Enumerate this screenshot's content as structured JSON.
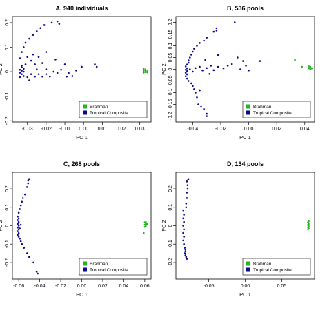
{
  "chart_data": [
    {
      "type": "scatter",
      "title": "A, 940 individuals",
      "xlabel": "PC 1",
      "ylabel": "PC 2",
      "xlim": [
        -0.038,
        0.036
      ],
      "ylim": [
        -0.205,
        0.225
      ],
      "xticks": [
        -0.03,
        -0.02,
        -0.01,
        0.0,
        0.01,
        0.02,
        0.03
      ],
      "xtick_labels": [
        "-0.03",
        "-0.02",
        "-0.01",
        "0.00",
        "0.01",
        "0.02",
        "0.03"
      ],
      "yticks": [
        -0.2,
        -0.1,
        0.0,
        0.1,
        0.2
      ],
      "ytick_labels": [
        "-0.2",
        "-0.1",
        "0",
        "0.1",
        "0.2"
      ],
      "legend": {
        "position": "bottom-right",
        "entries": [
          "Brahman",
          "Tropical Composite"
        ]
      },
      "series": [
        {
          "name": "Brahman",
          "color": "#22b422",
          "points": [
            [
              0.032,
              0.012
            ],
            [
              0.033,
              0.01
            ],
            [
              0.032,
              0.006
            ],
            [
              0.033,
              0.004
            ],
            [
              0.032,
              0.0
            ],
            [
              0.033,
              -0.002
            ],
            [
              0.034,
              0.002
            ],
            [
              0.032,
              -0.004
            ],
            [
              0.033,
              0.006
            ],
            [
              0.034,
              -0.003
            ]
          ]
        },
        {
          "name": "Tropical Composite",
          "color": "#0a0a8c",
          "points": [
            [
              -0.034,
              0.055
            ],
            [
              -0.033,
              0.08
            ],
            [
              -0.032,
              0.1
            ],
            [
              -0.031,
              0.118
            ],
            [
              -0.029,
              0.135
            ],
            [
              -0.027,
              0.15
            ],
            [
              -0.025,
              0.165
            ],
            [
              -0.023,
              0.178
            ],
            [
              -0.021,
              0.19
            ],
            [
              -0.017,
              0.2
            ],
            [
              -0.014,
              0.205
            ],
            [
              -0.013,
              0.195
            ],
            [
              -0.033,
              0.025
            ],
            [
              -0.033,
              0.018
            ],
            [
              -0.032,
              0.012
            ],
            [
              -0.034,
              0.008
            ],
            [
              -0.033,
              0.004
            ],
            [
              -0.032,
              0.0
            ],
            [
              -0.034,
              -0.004
            ],
            [
              -0.033,
              -0.01
            ],
            [
              -0.032,
              -0.018
            ],
            [
              -0.034,
              -0.022
            ],
            [
              -0.031,
              0.03
            ],
            [
              -0.03,
              0.06
            ],
            [
              -0.028,
              0.045
            ],
            [
              -0.026,
              0.03
            ],
            [
              -0.025,
              0.01
            ],
            [
              -0.024,
              -0.01
            ],
            [
              -0.028,
              -0.01
            ],
            [
              -0.03,
              -0.022
            ],
            [
              -0.029,
              -0.035
            ],
            [
              -0.026,
              -0.02
            ],
            [
              -0.022,
              -0.02
            ],
            [
              -0.02,
              -0.01
            ],
            [
              -0.018,
              -0.02
            ],
            [
              -0.016,
              0.0
            ],
            [
              -0.014,
              -0.005
            ],
            [
              -0.02,
              0.01
            ],
            [
              -0.015,
              0.05
            ],
            [
              -0.01,
              0.03
            ],
            [
              -0.012,
              0.008
            ],
            [
              -0.008,
              -0.005
            ],
            [
              -0.006,
              -0.018
            ],
            [
              -0.009,
              -0.02
            ],
            [
              -0.004,
              0.005
            ],
            [
              -0.001,
              0.02
            ],
            [
              0.006,
              0.03
            ],
            [
              0.007,
              0.02
            ],
            [
              -0.024,
              0.06
            ],
            [
              -0.02,
              0.08
            ],
            [
              -0.022,
              0.035
            ],
            [
              -0.027,
              0.07
            ]
          ]
        }
      ]
    },
    {
      "type": "scatter",
      "title": "B, 536 pools",
      "xlabel": "PC 1",
      "ylabel": "PC 2",
      "xlim": [
        -0.052,
        0.047
      ],
      "ylim": [
        -0.225,
        0.225
      ],
      "xticks": [
        -0.04,
        -0.02,
        0.0,
        0.02,
        0.04
      ],
      "xtick_labels": [
        "-0.04",
        "-0.02",
        "0.00",
        "0.02",
        "0.04"
      ],
      "yticks": [
        -0.2,
        -0.15,
        -0.1,
        -0.05,
        0.0,
        0.05,
        0.1,
        0.15,
        0.2
      ],
      "ytick_labels": [
        "-0.2",
        "-0.15",
        "-0.1",
        "-0.05",
        "0",
        "0.05",
        "0.1",
        "0.15",
        "0.2"
      ],
      "legend": {
        "position": "bottom-right",
        "entries": [
          "Brahman",
          "Tropical Composite"
        ]
      },
      "series": [
        {
          "name": "Brahman",
          "color": "#22b422",
          "points": [
            [
              0.043,
              0.012
            ],
            [
              0.044,
              0.008
            ],
            [
              0.043,
              0.004
            ],
            [
              0.044,
              0.0
            ],
            [
              0.045,
              0.004
            ],
            [
              0.044,
              0.01
            ],
            [
              0.033,
              0.04
            ],
            [
              0.038,
              0.01
            ]
          ]
        },
        {
          "name": "Tropical Composite",
          "color": "#0a0a8c",
          "points": [
            [
              -0.044,
              0.02
            ],
            [
              -0.045,
              0.012
            ],
            [
              -0.044,
              0.004
            ],
            [
              -0.045,
              -0.002
            ],
            [
              -0.044,
              -0.008
            ],
            [
              -0.045,
              -0.015
            ],
            [
              -0.044,
              -0.022
            ],
            [
              -0.045,
              -0.03
            ],
            [
              -0.044,
              -0.04
            ],
            [
              -0.043,
              -0.05
            ],
            [
              -0.043,
              0.028
            ],
            [
              -0.043,
              0.038
            ],
            [
              -0.042,
              0.05
            ],
            [
              -0.041,
              0.062
            ],
            [
              -0.04,
              0.075
            ],
            [
              -0.039,
              0.088
            ],
            [
              -0.037,
              0.1
            ],
            [
              -0.035,
              0.112
            ],
            [
              -0.032,
              0.122
            ],
            [
              -0.03,
              0.135
            ],
            [
              -0.025,
              0.16
            ],
            [
              -0.023,
              0.175
            ],
            [
              -0.023,
              0.165
            ],
            [
              -0.041,
              -0.06
            ],
            [
              -0.04,
              -0.072
            ],
            [
              -0.039,
              -0.085
            ],
            [
              -0.038,
              -0.1
            ],
            [
              -0.037,
              -0.12
            ],
            [
              -0.036,
              -0.15
            ],
            [
              -0.034,
              -0.16
            ],
            [
              -0.032,
              -0.17
            ],
            [
              -0.03,
              -0.19
            ],
            [
              -0.03,
              -0.2
            ],
            [
              -0.035,
              -0.09
            ],
            [
              -0.042,
              0.0
            ],
            [
              -0.04,
              -0.01
            ],
            [
              -0.038,
              0.005
            ],
            [
              -0.035,
              0.01
            ],
            [
              -0.033,
              -0.005
            ],
            [
              -0.03,
              0.005
            ],
            [
              -0.027,
              0.015
            ],
            [
              -0.025,
              -0.004
            ],
            [
              -0.022,
              0.01
            ],
            [
              -0.018,
              0.004
            ],
            [
              -0.015,
              0.015
            ],
            [
              -0.012,
              0.022
            ],
            [
              -0.008,
              0.05
            ],
            [
              -0.006,
              0.0
            ],
            [
              -0.01,
              0.2
            ],
            [
              -0.004,
              0.035
            ],
            [
              -0.002,
              0.015
            ],
            [
              0.0,
              -0.005
            ],
            [
              0.008,
              0.035
            ],
            [
              -0.022,
              0.06
            ],
            [
              -0.028,
              -0.02
            ],
            [
              -0.031,
              0.04
            ]
          ]
        }
      ]
    },
    {
      "type": "scatter",
      "title": "C, 268 pools",
      "xlabel": "PC 1",
      "ylabel": "PC 2",
      "xlim": [
        -0.066,
        0.066
      ],
      "ylim": [
        -0.29,
        0.29
      ],
      "xticks": [
        -0.06,
        -0.04,
        -0.02,
        0.0,
        0.02,
        0.04,
        0.06
      ],
      "xtick_labels": [
        "-0.06",
        "-0.04",
        "-0.02",
        "0.00",
        "0.02",
        "0.04",
        "0.06"
      ],
      "yticks": [
        -0.2,
        -0.1,
        0.0,
        0.1,
        0.2
      ],
      "ytick_labels": [
        "-0.2",
        "-0.1",
        "0",
        "0.1",
        "0.2"
      ],
      "legend": {
        "position": "bottom-right",
        "entries": [
          "Brahman",
          "Tropical Composite"
        ]
      },
      "series": [
        {
          "name": "Brahman",
          "color": "#22b422",
          "points": [
            [
              0.06,
              0.018
            ],
            [
              0.061,
              0.012
            ],
            [
              0.06,
              0.006
            ],
            [
              0.061,
              0.0
            ],
            [
              0.06,
              -0.006
            ],
            [
              0.061,
              0.02
            ],
            [
              0.062,
              0.01
            ],
            [
              0.059,
              -0.04
            ]
          ]
        },
        {
          "name": "Tropical Composite",
          "color": "#0a0a8c",
          "points": [
            [
              -0.061,
              0.05
            ],
            [
              -0.06,
              0.04
            ],
            [
              -0.061,
              0.03
            ],
            [
              -0.06,
              0.02
            ],
            [
              -0.061,
              0.01
            ],
            [
              -0.06,
              0.0
            ],
            [
              -0.061,
              -0.01
            ],
            [
              -0.06,
              -0.02
            ],
            [
              -0.061,
              -0.03
            ],
            [
              -0.06,
              -0.04
            ],
            [
              -0.061,
              -0.05
            ],
            [
              -0.06,
              -0.06
            ],
            [
              -0.059,
              -0.07
            ],
            [
              -0.058,
              -0.085
            ],
            [
              -0.057,
              -0.1
            ],
            [
              -0.06,
              0.07
            ],
            [
              -0.059,
              0.09
            ],
            [
              -0.058,
              0.11
            ],
            [
              -0.057,
              0.13
            ],
            [
              -0.056,
              0.15
            ],
            [
              -0.054,
              0.17
            ],
            [
              -0.052,
              0.21
            ],
            [
              -0.051,
              0.23
            ],
            [
              -0.05,
              0.25
            ],
            [
              -0.051,
              0.245
            ],
            [
              -0.055,
              -0.12
            ],
            [
              -0.052,
              -0.15
            ],
            [
              -0.05,
              -0.17
            ],
            [
              -0.046,
              -0.2
            ],
            [
              -0.043,
              -0.25
            ],
            [
              -0.042,
              -0.26
            ],
            [
              -0.059,
              -0.015
            ],
            [
              -0.058,
              0.005
            ]
          ]
        }
      ]
    },
    {
      "type": "scatter",
      "title": "D, 134 pools",
      "xlabel": "PC 1",
      "ylabel": "PC 2",
      "xlim": [
        -0.095,
        0.095
      ],
      "ylim": [
        -0.29,
        0.29
      ],
      "xticks": [
        -0.05,
        0.0,
        0.05
      ],
      "xtick_labels": [
        "-0.05",
        "0.00",
        "0.05"
      ],
      "yticks": [
        -0.2,
        -0.1,
        0.0,
        0.1,
        0.2
      ],
      "ytick_labels": [
        "-0.2",
        "-0.1",
        "0",
        "0.1",
        "0.2"
      ],
      "legend": {
        "position": "bottom-right",
        "entries": [
          "Brahman",
          "Tropical Composite"
        ]
      },
      "series": [
        {
          "name": "Brahman",
          "color": "#22b422",
          "points": [
            [
              0.086,
              0.018
            ],
            [
              0.087,
              0.01
            ],
            [
              0.086,
              0.004
            ],
            [
              0.087,
              -0.002
            ],
            [
              0.086,
              -0.008
            ],
            [
              0.087,
              -0.014
            ],
            [
              0.086,
              -0.02
            ],
            [
              0.087,
              0.024
            ]
          ]
        },
        {
          "name": "Tropical Composite",
          "color": "#0a0a8c",
          "points": [
            [
              -0.085,
              0.08
            ],
            [
              -0.084,
              0.06
            ],
            [
              -0.085,
              0.04
            ],
            [
              -0.084,
              0.02
            ],
            [
              -0.085,
              0.0
            ],
            [
              -0.084,
              -0.02
            ],
            [
              -0.085,
              -0.04
            ],
            [
              -0.084,
              -0.06
            ],
            [
              -0.085,
              -0.08
            ],
            [
              -0.084,
              -0.1
            ],
            [
              -0.083,
              -0.12
            ],
            [
              -0.082,
              -0.14
            ],
            [
              -0.082,
              -0.16
            ],
            [
              -0.081,
              -0.17
            ],
            [
              -0.08,
              -0.18
            ],
            [
              -0.082,
              -0.13
            ],
            [
              -0.083,
              -0.15
            ],
            [
              -0.081,
              0.12
            ],
            [
              -0.08,
              0.15
            ],
            [
              -0.08,
              0.18
            ],
            [
              -0.079,
              0.2
            ],
            [
              -0.079,
              0.22
            ],
            [
              -0.078,
              0.25
            ],
            [
              -0.08,
              0.24
            ],
            [
              -0.081,
              0.1
            ]
          ]
        }
      ]
    }
  ]
}
